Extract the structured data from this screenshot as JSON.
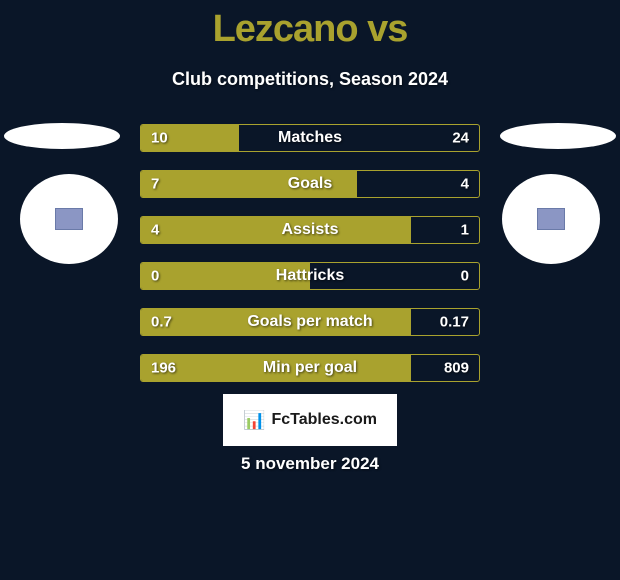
{
  "title": "Lezcano vs",
  "subtitle": "Club competitions, Season 2024",
  "colors": {
    "background": "#0a1628",
    "accent": "#a9a22e",
    "text": "#ffffff",
    "badge_inner": "#8b96c4"
  },
  "stats": [
    {
      "label": "Matches",
      "left_value": "10",
      "right_value": "24",
      "left_pct": 29
    },
    {
      "label": "Goals",
      "left_value": "7",
      "right_value": "4",
      "left_pct": 64
    },
    {
      "label": "Assists",
      "left_value": "4",
      "right_value": "1",
      "left_pct": 80
    },
    {
      "label": "Hattricks",
      "left_value": "0",
      "right_value": "0",
      "left_pct": 50
    },
    {
      "label": "Goals per match",
      "left_value": "0.7",
      "right_value": "0.17",
      "left_pct": 80
    },
    {
      "label": "Min per goal",
      "left_value": "196",
      "right_value": "809",
      "left_pct": 80
    }
  ],
  "footer_logo": "FcTables.com",
  "footer_date": "5 november 2024"
}
